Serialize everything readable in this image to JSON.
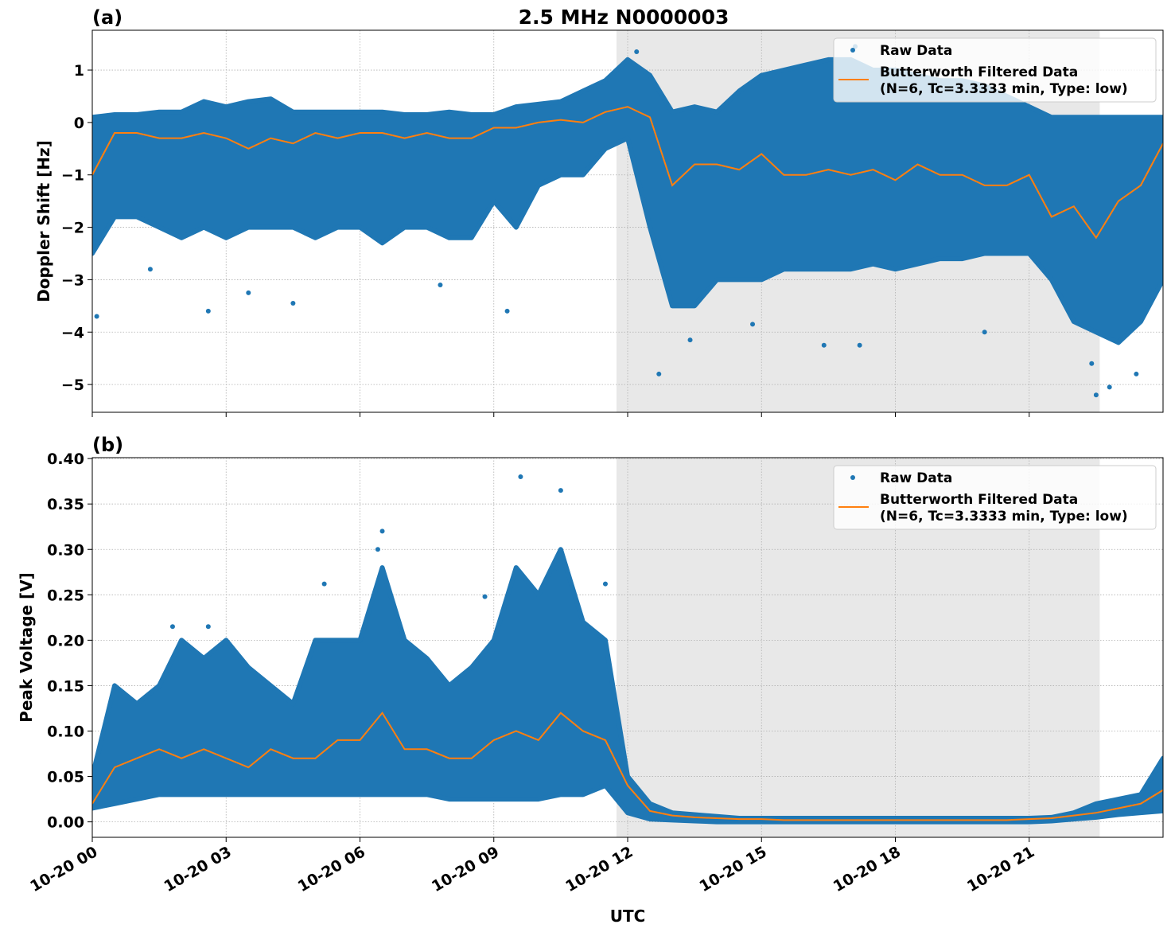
{
  "figure": {
    "title": "2.5 MHz N0000003",
    "xlabel": "UTC",
    "x_tick_labels": [
      "10-20 00",
      "10-20 03",
      "10-20 06",
      "10-20 09",
      "10-20 12",
      "10-20 15",
      "10-20 18",
      "10-20 21"
    ],
    "colors": {
      "raw": "#1f77b4",
      "filtered": "#ff7f0e",
      "shade": "#e8e8e8",
      "grid": "#b0b0b0"
    }
  },
  "chart_data": [
    {
      "type": "scatter",
      "panel_label": "(a)",
      "ylabel": "Doppler Shift [Hz]",
      "x_unit": "hours UTC on 10-20",
      "xlim": [
        0,
        24
      ],
      "ylim": [
        -5.53,
        1.76
      ],
      "x_ticks": [
        0,
        3,
        6,
        9,
        12,
        15,
        18,
        21
      ],
      "y_ticks": [
        1,
        0,
        -1,
        -2,
        -3,
        -4,
        -5
      ],
      "y_tick_labels": [
        "1",
        "0",
        "−1",
        "−2",
        "−3",
        "−4",
        "−5"
      ],
      "grid": true,
      "shaded_interval": [
        11.75,
        22.58
      ],
      "legend": {
        "placement": "upper-right",
        "entries": [
          "Raw Data",
          "Butterworth Filtered Data\n(N=6, Tc=3.3333 min, Type: low)"
        ]
      },
      "x": [
        0,
        0.5,
        1,
        1.5,
        2,
        2.5,
        3,
        3.5,
        4,
        4.5,
        5,
        5.5,
        6,
        6.5,
        7,
        7.5,
        8,
        8.5,
        9,
        9.5,
        10,
        10.5,
        11,
        11.5,
        12,
        12.5,
        13,
        13.5,
        14,
        14.5,
        15,
        15.5,
        16,
        16.5,
        17,
        17.5,
        18,
        18.5,
        19,
        19.5,
        20,
        20.5,
        21,
        21.5,
        22,
        22.5,
        23,
        23.5,
        24
      ],
      "raw_upper": [
        0.1,
        0.15,
        0.15,
        0.2,
        0.2,
        0.4,
        0.3,
        0.4,
        0.45,
        0.2,
        0.2,
        0.2,
        0.2,
        0.2,
        0.15,
        0.15,
        0.2,
        0.15,
        0.15,
        0.3,
        0.35,
        0.4,
        0.6,
        0.8,
        1.2,
        0.9,
        0.2,
        0.3,
        0.2,
        0.6,
        0.9,
        1.0,
        1.1,
        1.2,
        1.2,
        1.0,
        1.0,
        0.9,
        0.8,
        0.8,
        0.7,
        0.5,
        0.3,
        0.1,
        0.1,
        0.1,
        0.1,
        0.1,
        0.1
      ],
      "raw_lower": [
        -2.5,
        -1.8,
        -1.8,
        -2.0,
        -2.2,
        -2.0,
        -2.2,
        -2.0,
        -2.0,
        -2.0,
        -2.2,
        -2.0,
        -2.0,
        -2.3,
        -2.0,
        -2.0,
        -2.2,
        -2.2,
        -1.5,
        -2.0,
        -1.2,
        -1.0,
        -1.0,
        -0.5,
        -0.3,
        -2.0,
        -3.5,
        -3.5,
        -3.0,
        -3.0,
        -3.0,
        -2.8,
        -2.8,
        -2.8,
        -2.8,
        -2.7,
        -2.8,
        -2.7,
        -2.6,
        -2.6,
        -2.5,
        -2.5,
        -2.5,
        -3.0,
        -3.8,
        -4.0,
        -4.2,
        -3.8,
        -3.0
      ],
      "raw_outliers": [
        [
          0.1,
          -3.7
        ],
        [
          1.3,
          -2.8
        ],
        [
          2.6,
          -3.6
        ],
        [
          3.5,
          -3.25
        ],
        [
          4.5,
          -3.45
        ],
        [
          7.8,
          -3.1
        ],
        [
          9.3,
          -3.6
        ],
        [
          12.7,
          -4.8
        ],
        [
          13.4,
          -4.15
        ],
        [
          14.8,
          -3.85
        ],
        [
          16.4,
          -4.25
        ],
        [
          17.2,
          -4.25
        ],
        [
          20.0,
          -4.0
        ],
        [
          22.4,
          -4.6
        ],
        [
          22.8,
          -5.05
        ],
        [
          22.5,
          -5.2
        ],
        [
          23.4,
          -4.8
        ],
        [
          12.2,
          1.35
        ],
        [
          17.1,
          1.45
        ]
      ],
      "filtered": [
        -1.0,
        -0.2,
        -0.2,
        -0.3,
        -0.3,
        -0.2,
        -0.3,
        -0.5,
        -0.3,
        -0.4,
        -0.2,
        -0.3,
        -0.2,
        -0.2,
        -0.3,
        -0.2,
        -0.3,
        -0.3,
        -0.1,
        -0.1,
        0.0,
        0.05,
        0.0,
        0.2,
        0.3,
        0.1,
        -1.2,
        -0.8,
        -0.8,
        -0.9,
        -0.6,
        -1.0,
        -1.0,
        -0.9,
        -1.0,
        -0.9,
        -1.1,
        -0.8,
        -1.0,
        -1.0,
        -1.2,
        -1.2,
        -1.0,
        -1.8,
        -1.6,
        -2.2,
        -1.5,
        -1.2,
        -0.4
      ]
    },
    {
      "type": "scatter",
      "panel_label": "(b)",
      "ylabel": "Peak Voltage [V]",
      "x_unit": "hours UTC on 10-20",
      "xlim": [
        0,
        24
      ],
      "ylim": [
        -0.017,
        0.401
      ],
      "x_ticks": [
        0,
        3,
        6,
        9,
        12,
        15,
        18,
        21
      ],
      "y_ticks": [
        0.4,
        0.35,
        0.3,
        0.25,
        0.2,
        0.15,
        0.1,
        0.05,
        0.0
      ],
      "y_tick_labels": [
        "0.40",
        "0.35",
        "0.30",
        "0.25",
        "0.20",
        "0.15",
        "0.10",
        "0.05",
        "0.00"
      ],
      "grid": true,
      "shaded_interval": [
        11.75,
        22.58
      ],
      "legend": {
        "placement": "upper-right",
        "entries": [
          "Raw Data",
          "Butterworth Filtered Data\n(N=6, Tc=3.3333 min, Type: low)"
        ]
      },
      "x": [
        0,
        0.5,
        1,
        1.5,
        2,
        2.5,
        3,
        3.5,
        4,
        4.5,
        5,
        5.5,
        6,
        6.5,
        7,
        7.5,
        8,
        8.5,
        9,
        9.5,
        10,
        10.5,
        11,
        11.5,
        12,
        12.5,
        13,
        13.5,
        14,
        14.5,
        15,
        15.5,
        16,
        16.5,
        17,
        17.5,
        18,
        18.5,
        19,
        19.5,
        20,
        20.5,
        21,
        21.5,
        22,
        22.5,
        23,
        23.5,
        24
      ],
      "raw_upper": [
        0.05,
        0.15,
        0.13,
        0.15,
        0.2,
        0.18,
        0.2,
        0.17,
        0.15,
        0.13,
        0.2,
        0.2,
        0.2,
        0.28,
        0.2,
        0.18,
        0.15,
        0.17,
        0.2,
        0.28,
        0.25,
        0.3,
        0.22,
        0.2,
        0.05,
        0.02,
        0.01,
        0.008,
        0.006,
        0.004,
        0.004,
        0.004,
        0.004,
        0.004,
        0.004,
        0.004,
        0.004,
        0.004,
        0.004,
        0.004,
        0.004,
        0.004,
        0.004,
        0.005,
        0.01,
        0.02,
        0.025,
        0.03,
        0.07
      ],
      "raw_lower": [
        0.015,
        0.02,
        0.025,
        0.03,
        0.03,
        0.03,
        0.03,
        0.03,
        0.03,
        0.03,
        0.03,
        0.03,
        0.03,
        0.03,
        0.03,
        0.03,
        0.025,
        0.025,
        0.025,
        0.025,
        0.025,
        0.03,
        0.03,
        0.04,
        0.01,
        0.003,
        0.002,
        0.001,
        0,
        0,
        0,
        0,
        0,
        0,
        0,
        0,
        0,
        0,
        0,
        0,
        0,
        0,
        0,
        0.001,
        0.003,
        0.005,
        0.008,
        0.01,
        0.012
      ],
      "raw_outliers": [
        [
          9.6,
          0.38
        ],
        [
          10.5,
          0.365
        ],
        [
          6.5,
          0.32
        ],
        [
          5.2,
          0.262
        ],
        [
          6.4,
          0.3
        ],
        [
          10.4,
          0.28
        ],
        [
          11.5,
          0.262
        ],
        [
          1.8,
          0.215
        ],
        [
          2.6,
          0.215
        ],
        [
          8.8,
          0.248
        ]
      ],
      "filtered": [
        0.02,
        0.06,
        0.07,
        0.08,
        0.07,
        0.08,
        0.07,
        0.06,
        0.08,
        0.07,
        0.07,
        0.09,
        0.09,
        0.12,
        0.08,
        0.08,
        0.07,
        0.07,
        0.09,
        0.1,
        0.09,
        0.12,
        0.1,
        0.09,
        0.04,
        0.012,
        0.007,
        0.005,
        0.004,
        0.003,
        0.003,
        0.002,
        0.002,
        0.002,
        0.002,
        0.002,
        0.002,
        0.002,
        0.002,
        0.002,
        0.002,
        0.002,
        0.003,
        0.004,
        0.007,
        0.01,
        0.015,
        0.02,
        0.035
      ]
    }
  ]
}
